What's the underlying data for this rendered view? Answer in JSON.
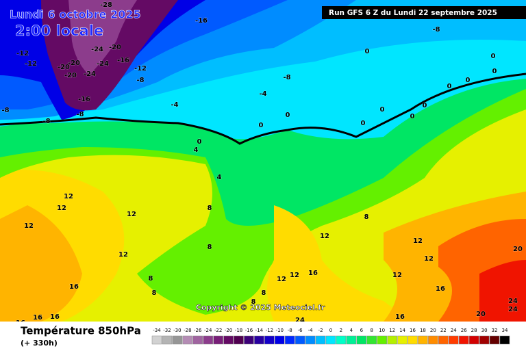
{
  "title": "Lundi 6 octobre 2025",
  "subtitle": "2:00 locale",
  "run": "Run GFS 6 Z du Lundi 22 septembre 2025",
  "copyright": "Copyright © 2025 Meteociel.fr",
  "footer": {
    "label": "Température 850hPa",
    "lead": "(+ 330h)"
  },
  "colorbar": {
    "ticks": [
      -34,
      -32,
      -30,
      -28,
      -26,
      -24,
      -22,
      -20,
      -18,
      -16,
      -14,
      -12,
      -10,
      -8,
      -6,
      -4,
      -2,
      0,
      2,
      4,
      6,
      8,
      10,
      12,
      14,
      16,
      18,
      20,
      22,
      24,
      26,
      28,
      30,
      32,
      34
    ],
    "colors": [
      "#d2d2d2",
      "#b4b4b4",
      "#969696",
      "#b48cb4",
      "#a064a0",
      "#8c3c8c",
      "#781e78",
      "#640a64",
      "#500050",
      "#3c0078",
      "#2800a0",
      "#1400c8",
      "#0000e6",
      "#0028ff",
      "#005aff",
      "#008cff",
      "#00beff",
      "#00e6ff",
      "#00ffc8",
      "#00f096",
      "#00e664",
      "#32e632",
      "#64f000",
      "#b4f000",
      "#e6f000",
      "#ffdc00",
      "#ffb400",
      "#ff8c00",
      "#ff6400",
      "#ff3c00",
      "#f01400",
      "#d20000",
      "#a00000",
      "#640000",
      "#000000"
    ]
  },
  "contour_labels": [
    -28,
    -16,
    -8,
    -12,
    -20,
    -24,
    -20,
    -16,
    -12,
    -20,
    -20,
    -24,
    -24,
    -12,
    -8,
    -8,
    -4,
    -4,
    -16,
    -8,
    -8,
    -8,
    0,
    0,
    0,
    0,
    0,
    0,
    4,
    4,
    8,
    8,
    12,
    12,
    12,
    12,
    12,
    8,
    8,
    12,
    12,
    12,
    16,
    16,
    12,
    16,
    16,
    20,
    20,
    24,
    24,
    24,
    16,
    16,
    16,
    8,
    12,
    12,
    8,
    8,
    0,
    0,
    0,
    0,
    0,
    0
  ]
}
